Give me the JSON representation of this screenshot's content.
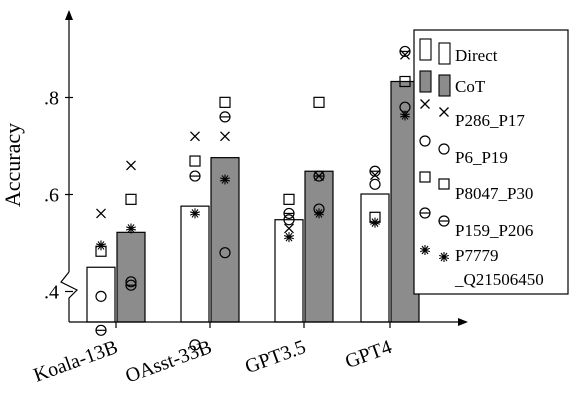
{
  "chart_data": {
    "type": "bar",
    "ylabel": "Accuracy",
    "ylim": [
      0.3,
      0.9
    ],
    "yticks": [
      0.4,
      0.6,
      0.8
    ],
    "ytick_labels": [
      ".4",
      ".6",
      ".8"
    ],
    "categories": [
      "Koala-13B",
      "OAsst-33B",
      "GPT3.5",
      "GPT4"
    ],
    "series": [
      {
        "name": "Direct",
        "color": "#ffffff",
        "values": [
          0.45,
          0.576,
          0.548,
          0.601
        ]
      },
      {
        "name": "CoT",
        "color": "#8c8c8c",
        "values": [
          0.522,
          0.676,
          0.648,
          0.833
        ]
      }
    ],
    "markers": [
      {
        "name": "P286_P17",
        "symbol": "x",
        "values": [
          [
            0.561,
            0.66
          ],
          [
            0.72,
            0.72
          ],
          [
            0.53,
            0.638
          ],
          [
            0.64,
            0.888
          ]
        ]
      },
      {
        "name": "P6_P19",
        "symbol": "circle",
        "values": [
          [
            0.39,
            0.42
          ],
          [
            0.29,
            0.48
          ],
          [
            0.548,
            0.57
          ],
          [
            0.621,
            0.78
          ]
        ]
      },
      {
        "name": "P8047_P30",
        "symbol": "square",
        "values": [
          [
            0.483,
            0.59
          ],
          [
            0.669,
            0.79
          ],
          [
            0.59,
            0.79
          ],
          [
            0.553,
            0.833
          ]
        ]
      },
      {
        "name": "P159_P206",
        "symbol": "circle-bar",
        "values": [
          [
            0.32,
            0.413
          ],
          [
            0.638,
            0.76
          ],
          [
            0.561,
            0.638
          ],
          [
            0.648,
            0.895
          ]
        ]
      },
      {
        "name": "P7779_Q21506450",
        "symbol": "star",
        "values": [
          [
            0.495,
            0.53
          ],
          [
            0.561,
            0.631
          ],
          [
            0.512,
            0.561
          ],
          [
            0.542,
            0.763
          ]
        ]
      }
    ],
    "legend": {
      "position": "right",
      "entries": [
        "Direct",
        "CoT",
        "P286_P17",
        "P6_P19",
        "P8047_P30",
        "P159_P206",
        "P7779",
        "_Q21506450"
      ]
    }
  }
}
